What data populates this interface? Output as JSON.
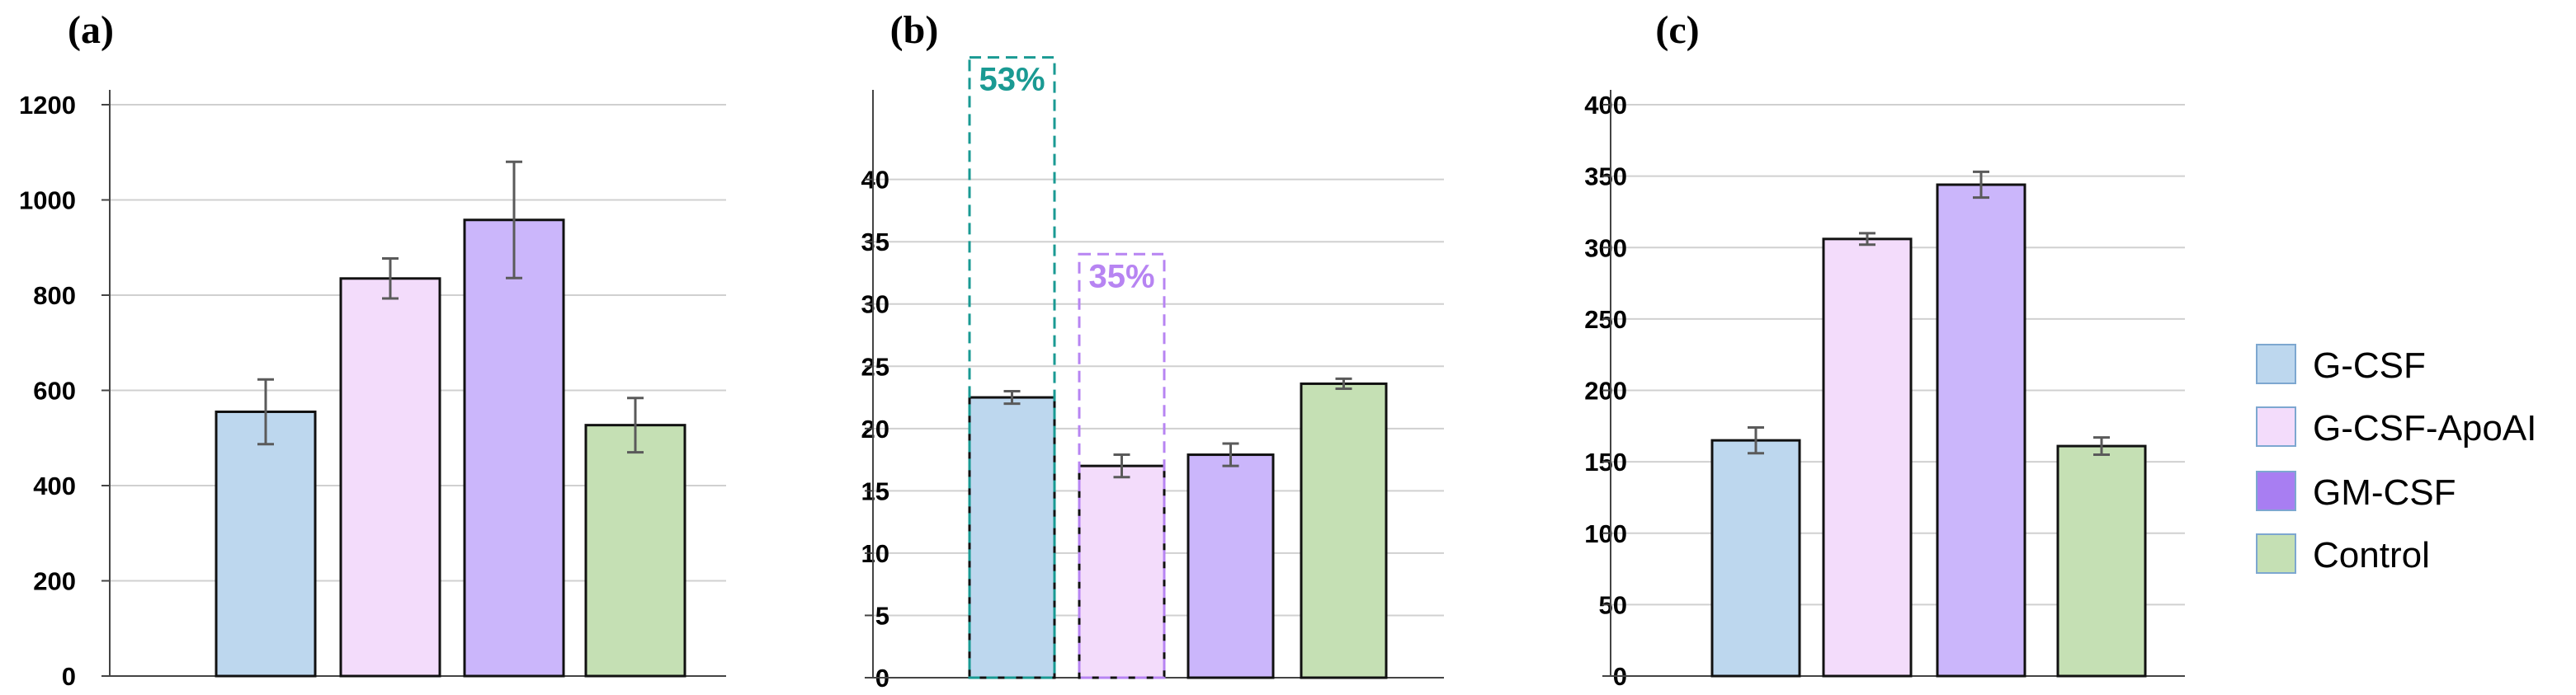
{
  "chart_data": [
    {
      "type": "bar",
      "panel_label": "(a)",
      "categories": [
        "G-CSF",
        "G-CSF-ApoAI",
        "GM-CSF",
        "Control"
      ],
      "values": [
        555,
        835,
        958,
        527
      ],
      "errors": [
        68,
        42,
        122,
        57
      ],
      "ylim": [
        0,
        1200
      ],
      "yticks": [
        0,
        200,
        400,
        600,
        800,
        1000,
        1200
      ],
      "grid": true,
      "annotations": []
    },
    {
      "type": "bar",
      "panel_label": "(b)",
      "categories": [
        "G-CSF",
        "G-CSF-ApoAI",
        "GM-CSF",
        "Control"
      ],
      "values": [
        22.5,
        17.0,
        17.9,
        23.6
      ],
      "errors": [
        0.5,
        0.9,
        0.9,
        0.4
      ],
      "ylim": [
        0,
        46
      ],
      "yticks": [
        0,
        5,
        10,
        15,
        20,
        25,
        30,
        35,
        40
      ],
      "grid": true,
      "annotations": [
        {
          "text": "53%",
          "category_index": 0,
          "top_value": 49.8,
          "color": "#1a9a93"
        },
        {
          "text": "35%",
          "category_index": 1,
          "top_value": 34.0,
          "color": "#b784f2"
        }
      ]
    },
    {
      "type": "bar",
      "panel_label": "(c)",
      "categories": [
        "G-CSF",
        "G-CSF-ApoAI",
        "GM-CSF",
        "Control"
      ],
      "values": [
        165,
        306,
        344,
        161
      ],
      "errors": [
        9,
        4,
        9,
        6
      ],
      "ylim": [
        0,
        400
      ],
      "yticks": [
        0,
        50,
        100,
        150,
        200,
        250,
        300,
        350,
        400
      ],
      "grid": true,
      "annotations": []
    }
  ],
  "legend": {
    "placement": "right",
    "items": [
      {
        "label": "G-CSF",
        "color": "#bdd7ee"
      },
      {
        "label": "G-CSF-ApoAI",
        "color": "#f3dcfb"
      },
      {
        "label": "GM-CSF",
        "color": "#a87ef2"
      },
      {
        "label": "Control",
        "color": "#c5e0b4"
      }
    ]
  },
  "colors": {
    "bar_fills": [
      "#bdd7ee",
      "#f3dcfb",
      "#cbb6fb",
      "#c5e0b4"
    ],
    "bar_outline": "#111111",
    "grid": "#d0d0d0",
    "error_bar": "#5a5a5a"
  }
}
